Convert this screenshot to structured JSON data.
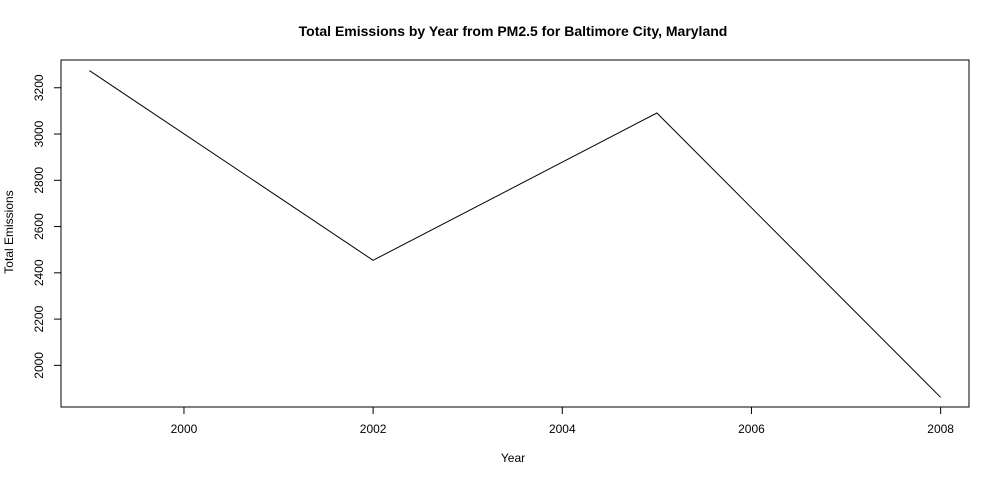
{
  "chart_data": {
    "type": "line",
    "title": "Total Emissions by Year from PM2.5 for Baltimore City, Maryland",
    "xlabel": "Year",
    "ylabel": "Total Emissions",
    "x": [
      1999,
      2002,
      2005,
      2008
    ],
    "series": [
      {
        "values": [
          3274,
          2454,
          3091,
          1862
        ]
      }
    ],
    "xlim": [
      1998.7,
      2008.3
    ],
    "ylim": [
      1820,
      3320
    ],
    "xticks": [
      2000,
      2002,
      2004,
      2006,
      2008
    ],
    "yticks": [
      2000,
      2200,
      2400,
      2600,
      2800,
      3000,
      3200
    ],
    "grid": false,
    "line_color": "#000000"
  }
}
